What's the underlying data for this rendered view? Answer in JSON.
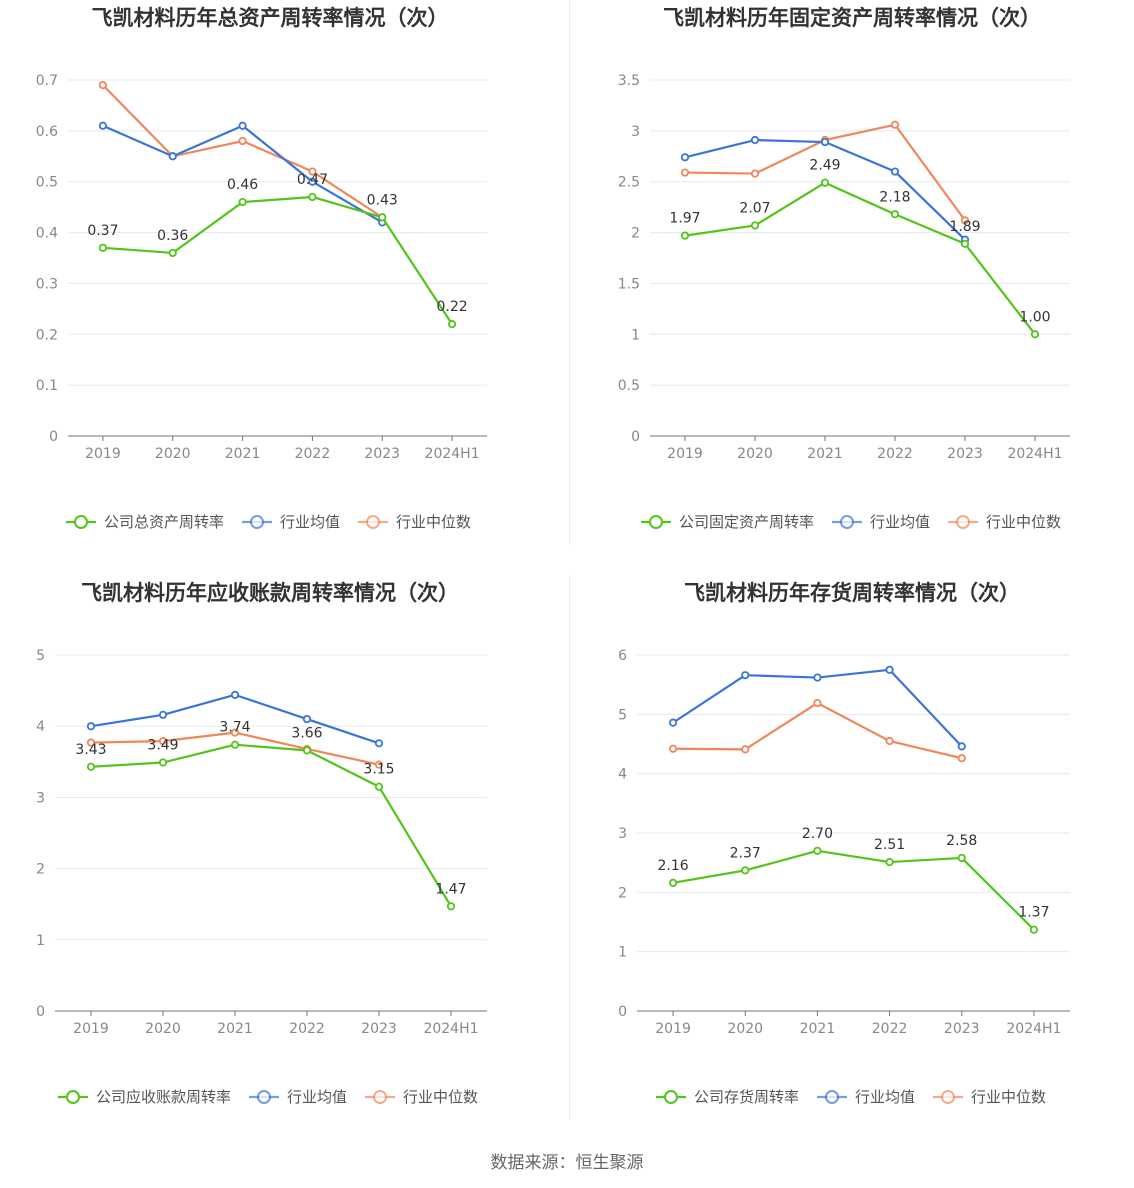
{
  "source_label": "数据来源：恒生聚源",
  "colors": {
    "company": "#52c41a",
    "industry_avg": "#3b74d9",
    "industry_median": "#f0875a"
  },
  "chart_data": [
    {
      "type": "line",
      "title": "飞凯材料历年总资产周转率情况（次）",
      "categories": [
        "2019",
        "2020",
        "2021",
        "2022",
        "2023",
        "2024H1"
      ],
      "ylim": [
        0,
        0.7
      ],
      "yticks": [
        "0",
        "0.1",
        "0.2",
        "0.3",
        "0.4",
        "0.5",
        "0.6",
        "0.7"
      ],
      "grid": true,
      "legend_position": "bottom",
      "series": [
        {
          "name": "公司总资产周转率",
          "values": [
            0.37,
            0.36,
            0.46,
            0.47,
            0.43,
            0.22
          ],
          "labels": [
            "0.37",
            "0.36",
            "0.46",
            "0.47",
            "0.43",
            "0.22"
          ]
        },
        {
          "name": "行业均值",
          "values": [
            0.61,
            0.55,
            0.61,
            0.5,
            0.42,
            null
          ]
        },
        {
          "name": "行业中位数",
          "values": [
            0.69,
            0.55,
            0.58,
            0.52,
            0.43,
            null
          ]
        }
      ]
    },
    {
      "type": "line",
      "title": "飞凯材料历年固定资产周转率情况（次）",
      "categories": [
        "2019",
        "2020",
        "2021",
        "2022",
        "2023",
        "2024H1"
      ],
      "ylim": [
        0,
        3.5
      ],
      "yticks": [
        "0",
        "0.5",
        "1",
        "1.5",
        "2",
        "2.5",
        "3",
        "3.5"
      ],
      "grid": true,
      "legend_position": "bottom",
      "series": [
        {
          "name": "公司固定资产周转率",
          "values": [
            1.97,
            2.07,
            2.49,
            2.18,
            1.89,
            1.0
          ],
          "labels": [
            "1.97",
            "2.07",
            "2.49",
            "2.18",
            "1.89",
            "1.00"
          ]
        },
        {
          "name": "行业均值",
          "values": [
            2.74,
            2.91,
            2.89,
            2.6,
            1.93,
            null
          ]
        },
        {
          "name": "行业中位数",
          "values": [
            2.59,
            2.58,
            2.91,
            3.06,
            2.12,
            null
          ]
        }
      ]
    },
    {
      "type": "line",
      "title": "飞凯材料历年应收账款周转率情况（次）",
      "categories": [
        "2019",
        "2020",
        "2021",
        "2022",
        "2023",
        "2024H1"
      ],
      "ylim": [
        0,
        5
      ],
      "yticks": [
        "0",
        "1",
        "2",
        "3",
        "4",
        "5"
      ],
      "grid": true,
      "legend_position": "bottom",
      "series": [
        {
          "name": "公司应收账款周转率",
          "values": [
            3.43,
            3.49,
            3.74,
            3.66,
            3.15,
            1.47
          ],
          "labels": [
            "3.43",
            "3.49",
            "3.74",
            "3.66",
            "3.15",
            "1.47"
          ]
        },
        {
          "name": "行业均值",
          "values": [
            4.0,
            4.16,
            4.44,
            4.1,
            3.76,
            null
          ]
        },
        {
          "name": "行业中位数",
          "values": [
            3.77,
            3.79,
            3.91,
            3.68,
            3.46,
            null
          ]
        }
      ]
    },
    {
      "type": "line",
      "title": "飞凯材料历年存货周转率情况（次）",
      "categories": [
        "2019",
        "2020",
        "2021",
        "2022",
        "2023",
        "2024H1"
      ],
      "ylim": [
        0,
        6
      ],
      "yticks": [
        "0",
        "1",
        "2",
        "3",
        "4",
        "5",
        "6"
      ],
      "grid": true,
      "legend_position": "bottom",
      "series": [
        {
          "name": "公司存货周转率",
          "values": [
            2.16,
            2.37,
            2.7,
            2.51,
            2.58,
            1.37
          ],
          "labels": [
            "2.16",
            "2.37",
            "2.70",
            "2.51",
            "2.58",
            "1.37"
          ]
        },
        {
          "name": "行业均值",
          "values": [
            4.86,
            5.66,
            5.62,
            5.75,
            4.46,
            null
          ]
        },
        {
          "name": "行业中位数",
          "values": [
            4.42,
            4.41,
            5.19,
            4.55,
            4.26,
            null
          ]
        }
      ]
    }
  ]
}
